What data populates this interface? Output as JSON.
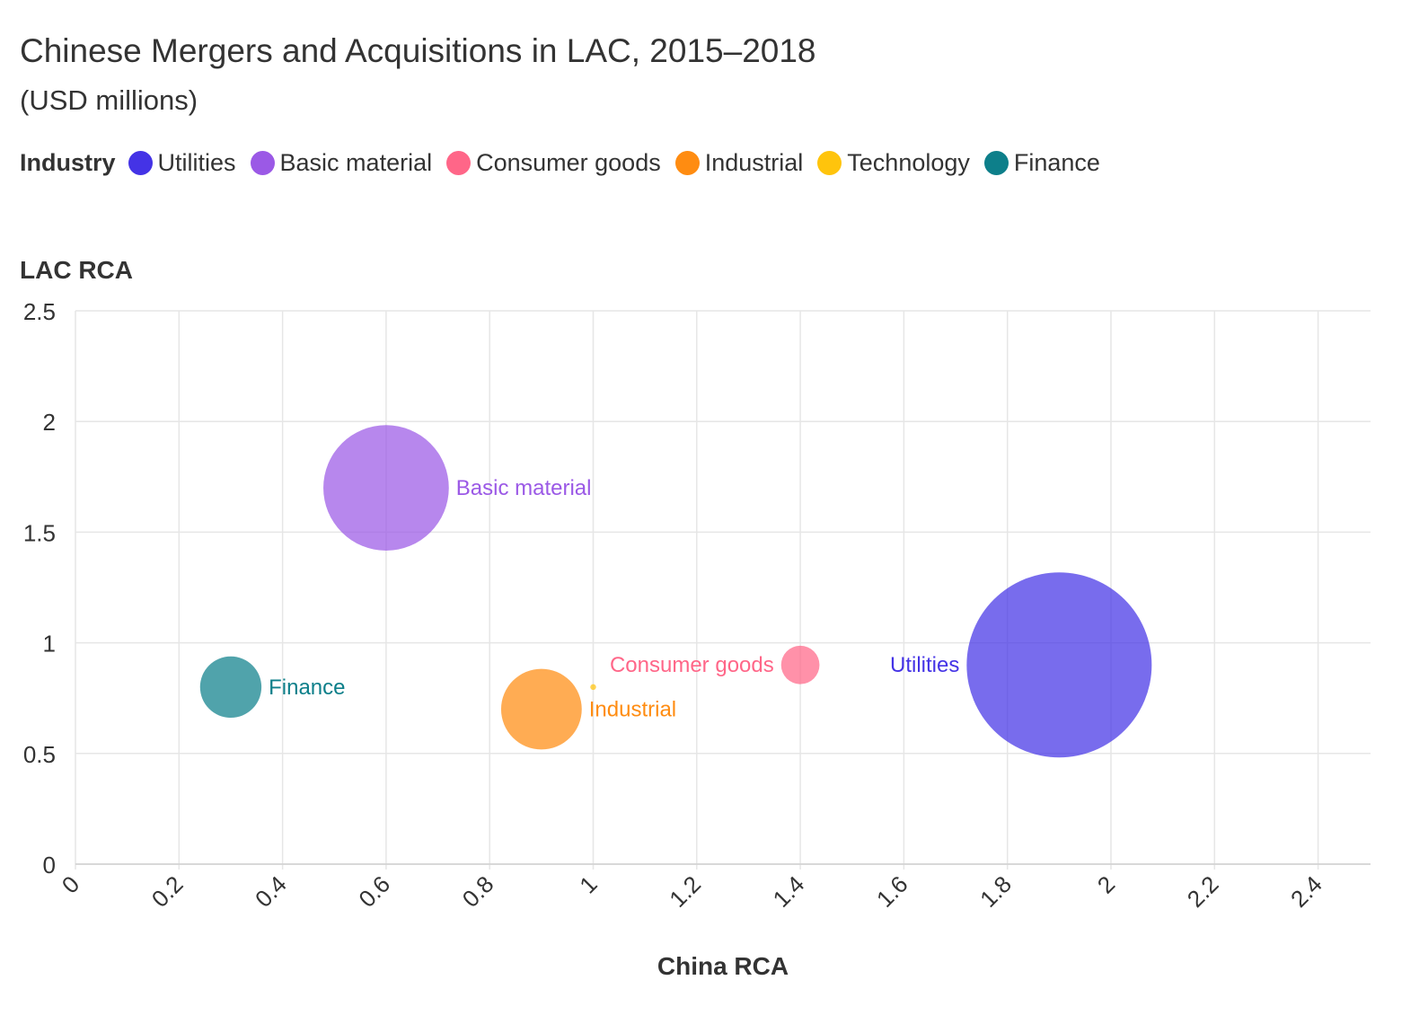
{
  "chart_data": {
    "type": "scatter",
    "title": "Chinese Mergers and Acquisitions in LAC, 2015–2018",
    "subtitle": "(USD millions)",
    "xlabel": "China RCA",
    "ylabel": "LAC RCA",
    "xlim": [
      0,
      2.5
    ],
    "ylim": [
      0,
      2.5
    ],
    "x_ticks": [
      "0",
      "0.2",
      "0.4",
      "0.6",
      "0.8",
      "1",
      "1.2",
      "1.4",
      "1.6",
      "1.8",
      "2",
      "2.2",
      "2.4"
    ],
    "y_ticks": [
      "0",
      "0.5",
      "1",
      "1.5",
      "2",
      "2.5"
    ],
    "grid": true,
    "legend": {
      "title": "Industry",
      "placement": "top-left",
      "items": [
        {
          "name": "Utilities",
          "color": "#4433e6"
        },
        {
          "name": "Basic material",
          "color": "#9b59e6"
        },
        {
          "name": "Consumer goods",
          "color": "#ff6688"
        },
        {
          "name": "Industrial",
          "color": "#ff8c11"
        },
        {
          "name": "Technology",
          "color": "#ffc40c"
        },
        {
          "name": "Finance",
          "color": "#0d7f8a"
        }
      ]
    },
    "points": [
      {
        "name": "Utilities",
        "x": 1.9,
        "y": 0.9,
        "size": 100,
        "color": "#4433e6",
        "label_side": "left"
      },
      {
        "name": "Basic material",
        "x": 0.6,
        "y": 1.7,
        "size": 46,
        "color": "#9b59e6",
        "label_side": "right"
      },
      {
        "name": "Consumer goods",
        "x": 1.4,
        "y": 0.9,
        "size": 4.3,
        "color": "#ff6688",
        "label_side": "left"
      },
      {
        "name": "Industrial",
        "x": 0.9,
        "y": 0.7,
        "size": 19,
        "color": "#ff8c11",
        "label_side": "right"
      },
      {
        "name": "Technology",
        "x": 1.0,
        "y": 0.8,
        "size": 0.1,
        "color": "#ffc40c",
        "label_side": "none"
      },
      {
        "name": "Finance",
        "x": 0.3,
        "y": 0.8,
        "size": 11,
        "color": "#0d7f8a",
        "label_side": "right"
      }
    ]
  }
}
